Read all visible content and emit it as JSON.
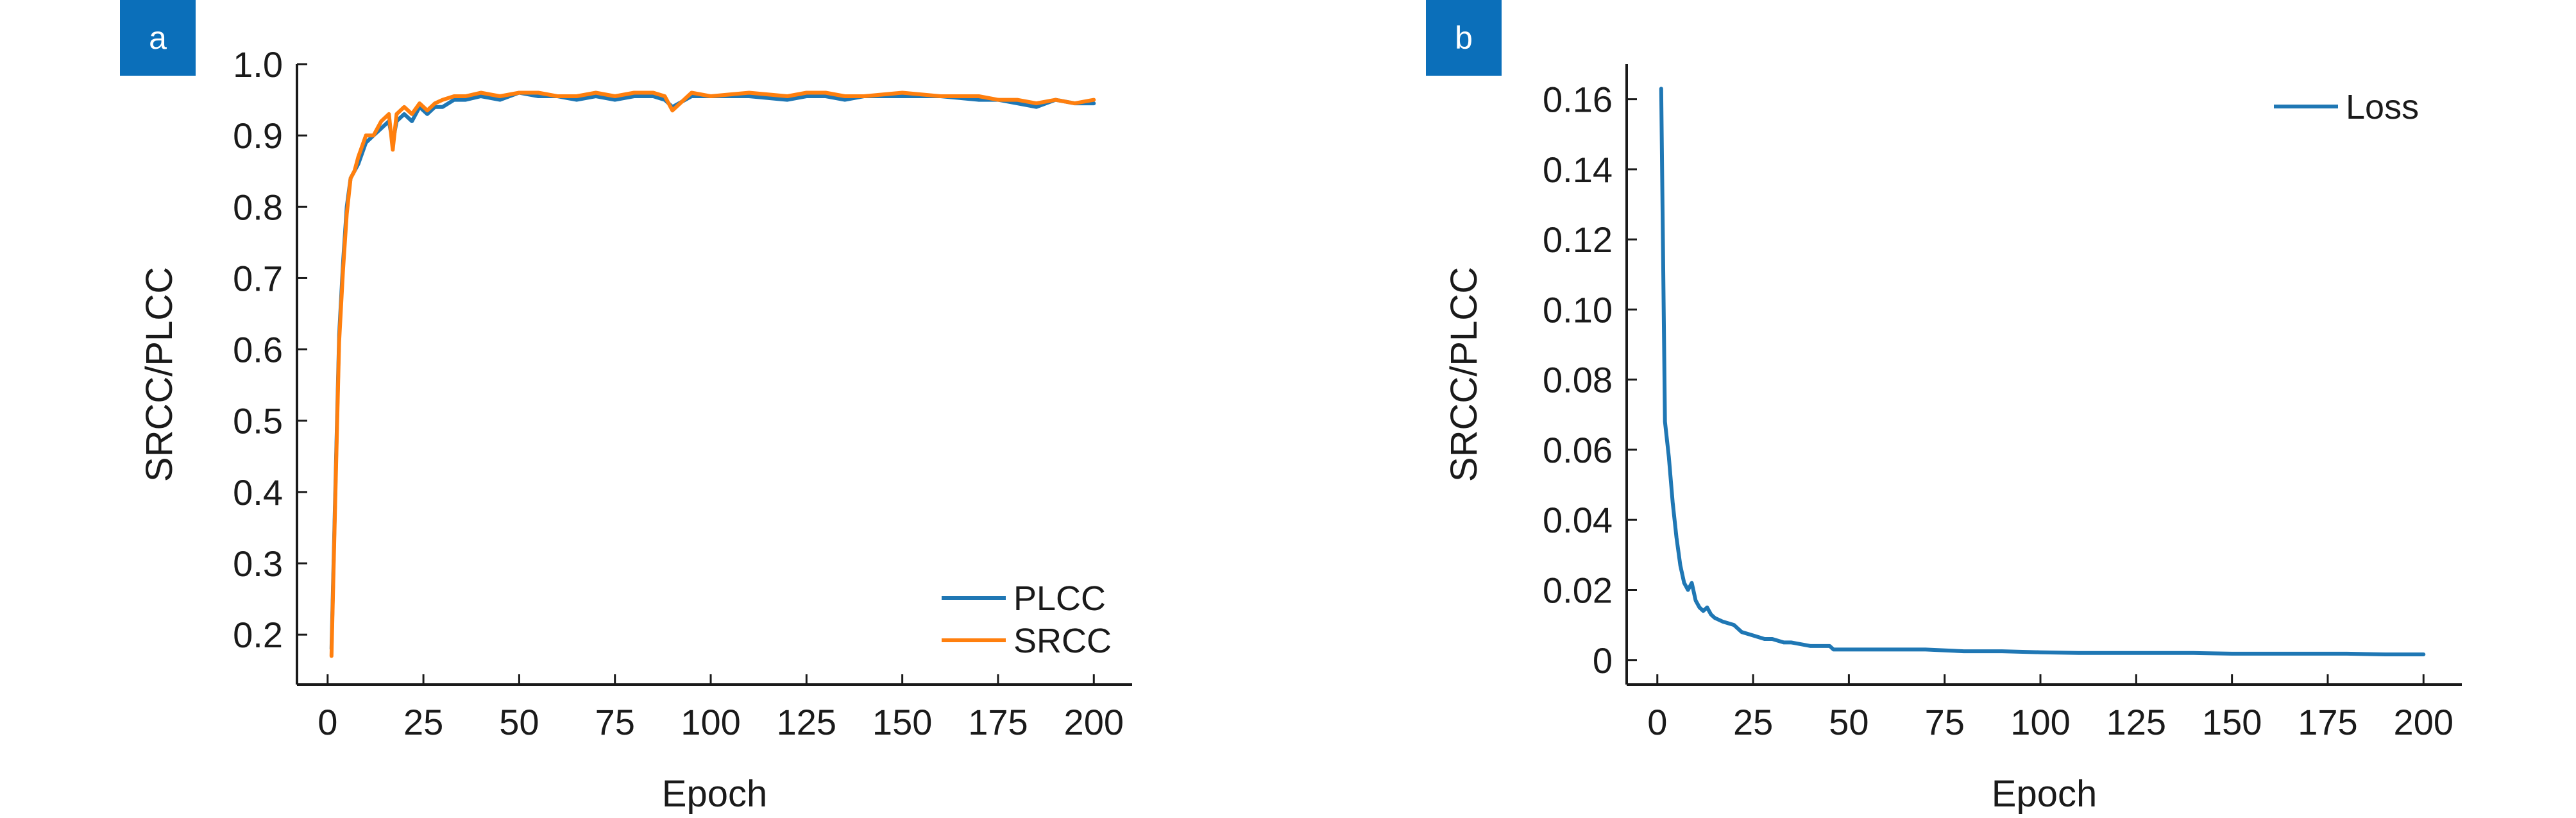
{
  "panels": [
    {
      "label": "a"
    },
    {
      "label": "b"
    }
  ],
  "chart_data": [
    {
      "type": "line",
      "panel": "a",
      "xlabel": "Epoch",
      "ylabel": "SRCC/PLCC",
      "xlim": [
        -8,
        210
      ],
      "ylim": [
        0.13,
        1.0
      ],
      "xticks": [
        0,
        25,
        50,
        75,
        100,
        125,
        150,
        175,
        200
      ],
      "yticks": [
        0.2,
        0.3,
        0.4,
        0.5,
        0.6,
        0.7,
        0.8,
        0.9,
        1.0
      ],
      "ytick_labels": [
        "0.2",
        "0.3",
        "0.4",
        "0.5",
        "0.6",
        "0.7",
        "0.8",
        "0.9",
        "1.0"
      ],
      "legend_position": "bottom-right",
      "colors": {
        "PLCC": "#1f77b4",
        "SRCC": "#ff7f0e"
      },
      "series": [
        {
          "name": "PLCC",
          "x": [
            1,
            2,
            3,
            4,
            5,
            6,
            7,
            8,
            10,
            12,
            14,
            16,
            17,
            18,
            20,
            22,
            24,
            26,
            28,
            30,
            33,
            36,
            40,
            45,
            50,
            55,
            60,
            65,
            70,
            75,
            80,
            85,
            88,
            90,
            95,
            100,
            110,
            120,
            125,
            130,
            135,
            140,
            150,
            160,
            170,
            175,
            180,
            185,
            190,
            195,
            200
          ],
          "values": [
            0.18,
            0.4,
            0.62,
            0.72,
            0.8,
            0.84,
            0.85,
            0.86,
            0.89,
            0.9,
            0.91,
            0.92,
            0.89,
            0.92,
            0.93,
            0.92,
            0.94,
            0.93,
            0.94,
            0.94,
            0.95,
            0.95,
            0.955,
            0.95,
            0.96,
            0.955,
            0.955,
            0.95,
            0.955,
            0.95,
            0.955,
            0.955,
            0.95,
            0.94,
            0.955,
            0.955,
            0.955,
            0.95,
            0.955,
            0.955,
            0.95,
            0.955,
            0.955,
            0.955,
            0.95,
            0.95,
            0.945,
            0.94,
            0.95,
            0.945,
            0.945
          ]
        },
        {
          "name": "SRCC",
          "x": [
            1,
            2,
            3,
            4,
            5,
            6,
            7,
            8,
            10,
            12,
            14,
            16,
            17,
            18,
            20,
            22,
            24,
            26,
            28,
            30,
            33,
            36,
            40,
            45,
            50,
            55,
            60,
            65,
            70,
            75,
            80,
            85,
            88,
            90,
            95,
            100,
            110,
            120,
            125,
            130,
            135,
            140,
            150,
            160,
            170,
            175,
            180,
            185,
            190,
            195,
            200
          ],
          "values": [
            0.17,
            0.39,
            0.61,
            0.71,
            0.79,
            0.84,
            0.85,
            0.87,
            0.9,
            0.9,
            0.92,
            0.93,
            0.88,
            0.93,
            0.94,
            0.93,
            0.945,
            0.935,
            0.945,
            0.95,
            0.955,
            0.955,
            0.96,
            0.955,
            0.96,
            0.96,
            0.955,
            0.955,
            0.96,
            0.955,
            0.96,
            0.96,
            0.955,
            0.935,
            0.96,
            0.955,
            0.96,
            0.955,
            0.96,
            0.96,
            0.955,
            0.955,
            0.96,
            0.955,
            0.955,
            0.95,
            0.95,
            0.945,
            0.95,
            0.945,
            0.95
          ]
        }
      ]
    },
    {
      "type": "line",
      "panel": "b",
      "xlabel": "Epoch",
      "ylabel": "SRCC/PLCC",
      "xlim": [
        -8,
        210
      ],
      "ylim": [
        -0.007,
        0.17
      ],
      "xticks": [
        0,
        25,
        50,
        75,
        100,
        125,
        150,
        175,
        200
      ],
      "yticks": [
        0,
        0.02,
        0.04,
        0.06,
        0.08,
        0.1,
        0.12,
        0.14,
        0.16
      ],
      "ytick_labels": [
        "0",
        "0.02",
        "0.04",
        "0.06",
        "0.08",
        "0.10",
        "0.12",
        "0.14",
        "0.16"
      ],
      "legend_position": "top-right",
      "colors": {
        "Loss": "#1f77b4"
      },
      "series": [
        {
          "name": "Loss",
          "x": [
            1,
            2,
            3,
            4,
            5,
            6,
            7,
            8,
            9,
            10,
            11,
            12,
            13,
            14,
            15,
            17,
            20,
            22,
            25,
            28,
            30,
            33,
            35,
            40,
            45,
            46,
            50,
            55,
            60,
            70,
            80,
            90,
            100,
            110,
            120,
            130,
            140,
            150,
            160,
            170,
            180,
            190,
            200
          ],
          "values": [
            0.163,
            0.068,
            0.058,
            0.045,
            0.035,
            0.027,
            0.022,
            0.02,
            0.022,
            0.017,
            0.015,
            0.014,
            0.015,
            0.013,
            0.012,
            0.011,
            0.01,
            0.008,
            0.007,
            0.006,
            0.006,
            0.005,
            0.005,
            0.004,
            0.004,
            0.003,
            0.003,
            0.003,
            0.003,
            0.003,
            0.0025,
            0.0025,
            0.0022,
            0.002,
            0.002,
            0.002,
            0.002,
            0.0018,
            0.0018,
            0.0018,
            0.0018,
            0.0016,
            0.0016
          ]
        }
      ]
    }
  ]
}
